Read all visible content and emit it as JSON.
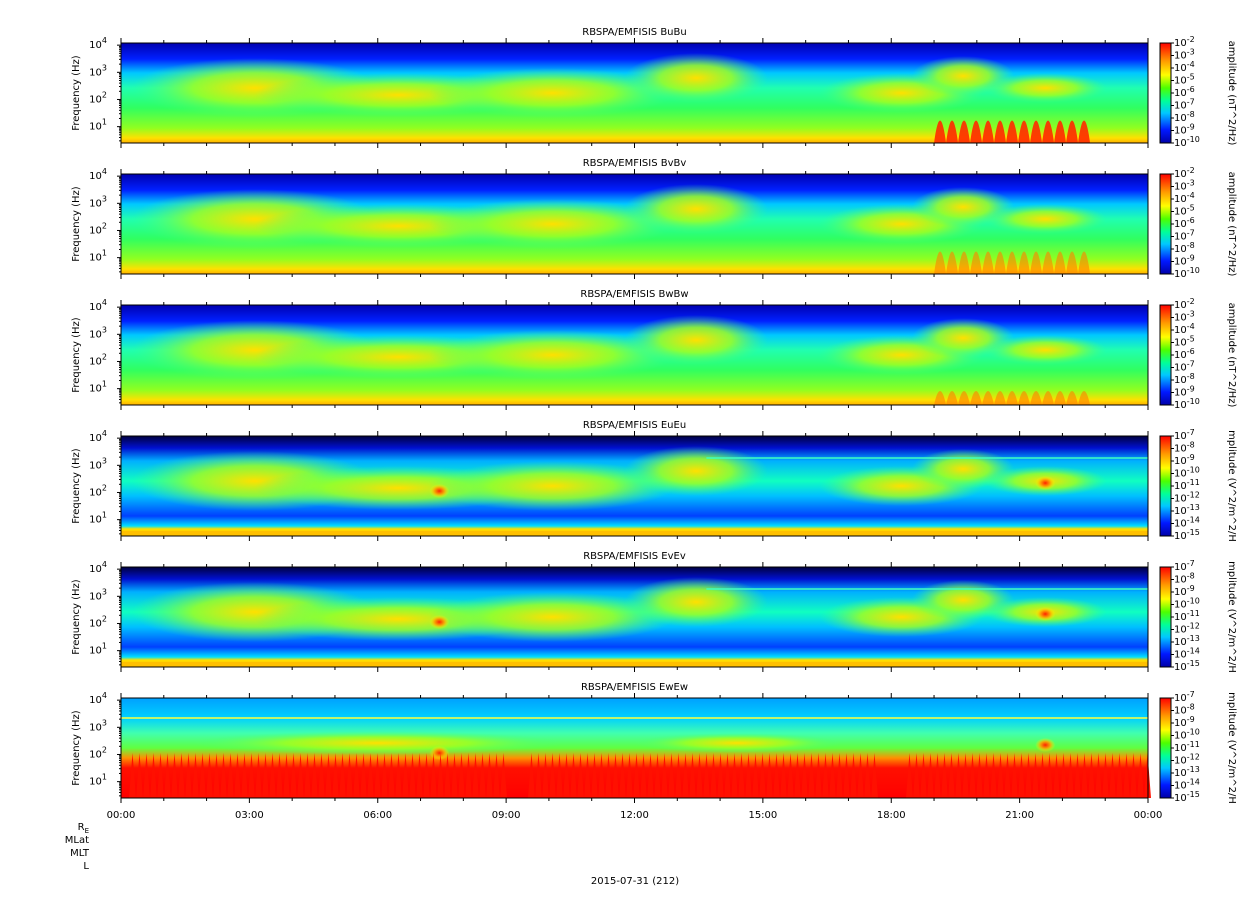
{
  "figure": {
    "date_label": "2015-07-31 (212)",
    "ephemeris_labels": [
      "R_E",
      "MLat",
      "MLT",
      "L"
    ]
  },
  "chart_data": [
    {
      "type": "heatmap",
      "title": "RBSPA/EMFISIS  BuBu",
      "ylabel": "Frequency (Hz)",
      "yscale": "log",
      "ylim": [
        2.5,
        12000
      ],
      "yticks": [
        "10^1",
        "10^2",
        "10^3",
        "10^4"
      ],
      "x_ticks": [
        "00:00",
        "03:00",
        "06:00",
        "09:00",
        "12:00",
        "15:00",
        "18:00",
        "21:00",
        "00:00"
      ],
      "colorbar": {
        "label": "amplitude (nT^2/Hz)",
        "scale": "log",
        "range_exponents": [
          -10,
          -2
        ],
        "tick_exponents": [
          -2,
          -3,
          -4,
          -5,
          -6,
          -7,
          -8,
          -9,
          -10
        ]
      },
      "colormap": "rainbow"
    },
    {
      "type": "heatmap",
      "title": "RBSPA/EMFISIS  BvBv",
      "ylabel": "Frequency (Hz)",
      "yscale": "log",
      "ylim": [
        2.5,
        12000
      ],
      "yticks": [
        "10^1",
        "10^2",
        "10^3",
        "10^4"
      ],
      "x_ticks": [
        "00:00",
        "03:00",
        "06:00",
        "09:00",
        "12:00",
        "15:00",
        "18:00",
        "21:00",
        "00:00"
      ],
      "colorbar": {
        "label": "amplitude (nT^2/Hz)",
        "scale": "log",
        "range_exponents": [
          -10,
          -2
        ],
        "tick_exponents": [
          -2,
          -3,
          -4,
          -5,
          -6,
          -7,
          -8,
          -9,
          -10
        ]
      },
      "colormap": "rainbow"
    },
    {
      "type": "heatmap",
      "title": "RBSPA/EMFISIS  BwBw",
      "ylabel": "Frequency (Hz)",
      "yscale": "log",
      "ylim": [
        2.5,
        12000
      ],
      "yticks": [
        "10^1",
        "10^2",
        "10^3",
        "10^4"
      ],
      "x_ticks": [
        "00:00",
        "03:00",
        "06:00",
        "09:00",
        "12:00",
        "15:00",
        "18:00",
        "21:00",
        "00:00"
      ],
      "colorbar": {
        "label": "amplitude (nT^2/Hz)",
        "scale": "log",
        "range_exponents": [
          -10,
          -2
        ],
        "tick_exponents": [
          -2,
          -3,
          -4,
          -5,
          -6,
          -7,
          -8,
          -9,
          -10
        ]
      },
      "colormap": "rainbow"
    },
    {
      "type": "heatmap",
      "title": "RBSPA/EMFISIS  EuEu",
      "ylabel": "Frequency (Hz)",
      "yscale": "log",
      "ylim": [
        2.5,
        12000
      ],
      "yticks": [
        "10^1",
        "10^2",
        "10^3",
        "10^4"
      ],
      "x_ticks": [
        "00:00",
        "03:00",
        "06:00",
        "09:00",
        "12:00",
        "15:00",
        "18:00",
        "21:00",
        "00:00"
      ],
      "colorbar": {
        "label": "mplitude (V^2/m^2/H",
        "scale": "log",
        "range_exponents": [
          -15,
          -7
        ],
        "tick_exponents": [
          -7,
          -8,
          -9,
          -10,
          -11,
          -12,
          -13,
          -14,
          -15
        ]
      },
      "colormap": "rainbow"
    },
    {
      "type": "heatmap",
      "title": "RBSPA/EMFISIS  EvEv",
      "ylabel": "Frequency (Hz)",
      "yscale": "log",
      "ylim": [
        2.5,
        12000
      ],
      "yticks": [
        "10^1",
        "10^2",
        "10^3",
        "10^4"
      ],
      "x_ticks": [
        "00:00",
        "03:00",
        "06:00",
        "09:00",
        "12:00",
        "15:00",
        "18:00",
        "21:00",
        "00:00"
      ],
      "colorbar": {
        "label": "mplitude (V^2/m^2/H",
        "scale": "log",
        "range_exponents": [
          -15,
          -7
        ],
        "tick_exponents": [
          -7,
          -8,
          -9,
          -10,
          -11,
          -12,
          -13,
          -14,
          -15
        ]
      },
      "colormap": "rainbow"
    },
    {
      "type": "heatmap",
      "title": "RBSPA/EMFISIS  EwEw",
      "ylabel": "Frequency (Hz)",
      "yscale": "log",
      "ylim": [
        2.5,
        12000
      ],
      "yticks": [
        "10^1",
        "10^2",
        "10^3",
        "10^4"
      ],
      "x_ticks": [
        "00:00",
        "03:00",
        "06:00",
        "09:00",
        "12:00",
        "15:00",
        "18:00",
        "21:00",
        "00:00"
      ],
      "colorbar": {
        "label": "mplitude (V^2/m^2/H",
        "scale": "log",
        "range_exponents": [
          -15,
          -7
        ],
        "tick_exponents": [
          -7,
          -8,
          -9,
          -10,
          -11,
          -12,
          -13,
          -14,
          -15
        ]
      },
      "colormap": "rainbow"
    }
  ]
}
